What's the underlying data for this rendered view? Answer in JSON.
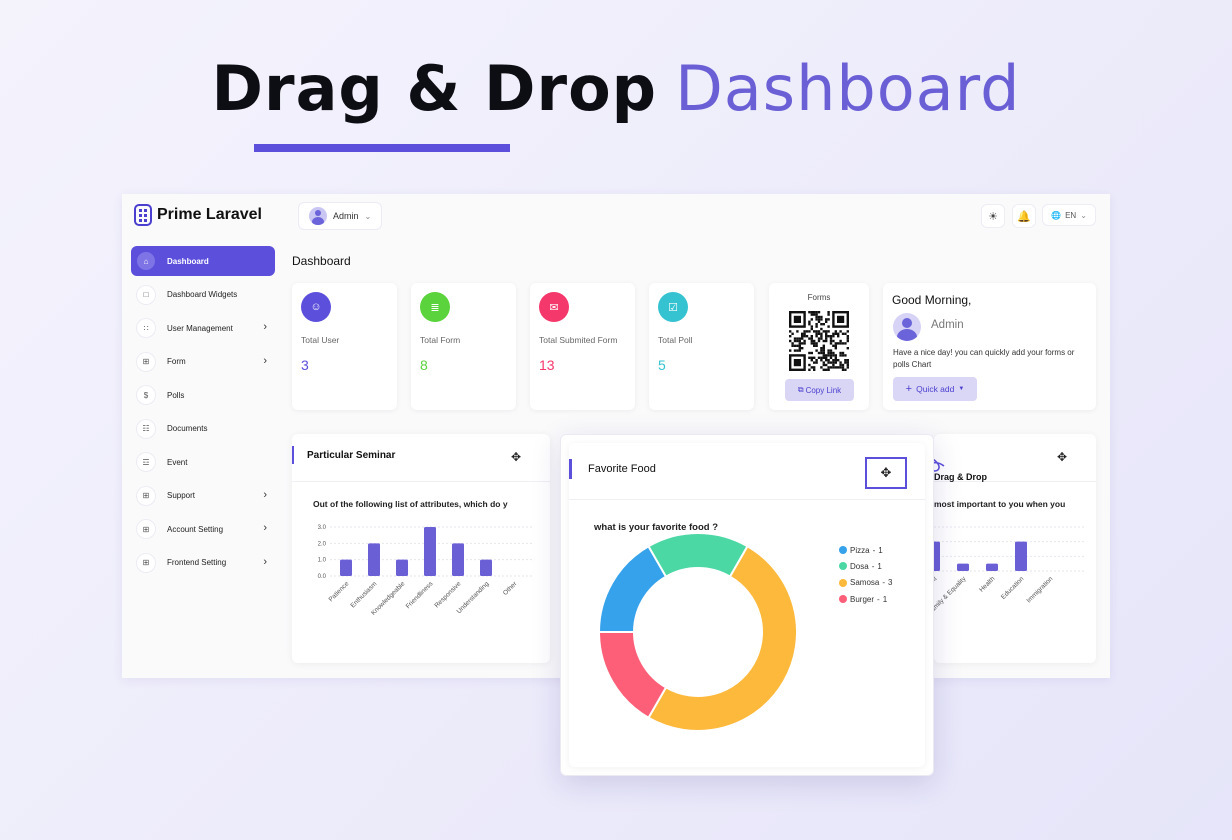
{
  "hero": {
    "title_bold": "Drag & Drop",
    "title_light": "Dashboard"
  },
  "brand": {
    "name": "Prime Laravel"
  },
  "topbar": {
    "user": "Admin",
    "language": "EN"
  },
  "sidebar": {
    "items": [
      {
        "label": "Dashboard",
        "icon": "home-icon",
        "active": true,
        "has_submenu": false
      },
      {
        "label": "Dashboard Widgets",
        "icon": "square-icon",
        "active": false,
        "has_submenu": false
      },
      {
        "label": "User Management",
        "icon": "grid-icon",
        "active": false,
        "has_submenu": true
      },
      {
        "label": "Form",
        "icon": "table-icon",
        "active": false,
        "has_submenu": true
      },
      {
        "label": "Polls",
        "icon": "dollar-icon",
        "active": false,
        "has_submenu": false
      },
      {
        "label": "Documents",
        "icon": "document-icon",
        "active": false,
        "has_submenu": false
      },
      {
        "label": "Event",
        "icon": "calendar-icon",
        "active": false,
        "has_submenu": false
      },
      {
        "label": "Support",
        "icon": "table-icon",
        "active": false,
        "has_submenu": true
      },
      {
        "label": "Account Setting",
        "icon": "table-icon",
        "active": false,
        "has_submenu": true
      },
      {
        "label": "Frontend Setting",
        "icon": "table-icon",
        "active": false,
        "has_submenu": true
      }
    ]
  },
  "page": {
    "heading": "Dashboard"
  },
  "stats": [
    {
      "label": "Total User",
      "value": "3",
      "color": "#5b4fdb",
      "value_color": "#5b4fdb"
    },
    {
      "label": "Total Form",
      "value": "8",
      "color": "#5ad33c",
      "value_color": "#5ad33c"
    },
    {
      "label": "Total Submited Form",
      "value": "13",
      "color": "#f5386b",
      "value_color": "#f5386b"
    },
    {
      "label": "Total Poll",
      "value": "5",
      "color": "#36c3d1",
      "value_color": "#36c3d1"
    }
  ],
  "forms_card": {
    "title": "Forms",
    "copy_label": "Copy Link"
  },
  "greeting": {
    "title": "Good Morning,",
    "name": "Admin",
    "message": "Have a nice day! you can quickly add your forms or polls Chart",
    "quick_add": "Quick add"
  },
  "widgets": {
    "seminar": {
      "title": "Particular Seminar",
      "question": "Out of the following list of attributes, which do y"
    },
    "right": {
      "question": "most important to you when you",
      "drag_label": "Drag & Drop"
    },
    "food": {
      "title": "Favorite Food",
      "question": "what is your favorite food ?"
    }
  },
  "chart_data": [
    {
      "type": "bar",
      "categories": [
        "Patience",
        "Enthusiasm",
        "Knowledgeable",
        "Friendliness",
        "Responsive",
        "Understanding",
        "Other"
      ],
      "values": [
        1,
        2,
        1,
        3,
        2,
        1,
        0
      ],
      "yticks": [
        "3.0",
        "2.0",
        "1.0",
        "0.0"
      ],
      "ylim": [
        0,
        3
      ],
      "color": "#6b5fd6"
    },
    {
      "type": "bar",
      "categories": [
        "ment",
        "Family & Equality",
        "Health",
        "Education",
        "Immigration"
      ],
      "values": [
        2,
        0.5,
        0.5,
        2,
        0
      ],
      "color": "#6b5fd6"
    },
    {
      "type": "pie",
      "series": [
        {
          "name": "Pizza",
          "value": 1,
          "color": "#36a2eb"
        },
        {
          "name": "Dosa",
          "value": 1,
          "color": "#4bd8a5"
        },
        {
          "name": "Samosa",
          "value": 3,
          "color": "#fdb93c"
        },
        {
          "name": "Burger",
          "value": 1,
          "color": "#fd5f78"
        }
      ]
    }
  ]
}
